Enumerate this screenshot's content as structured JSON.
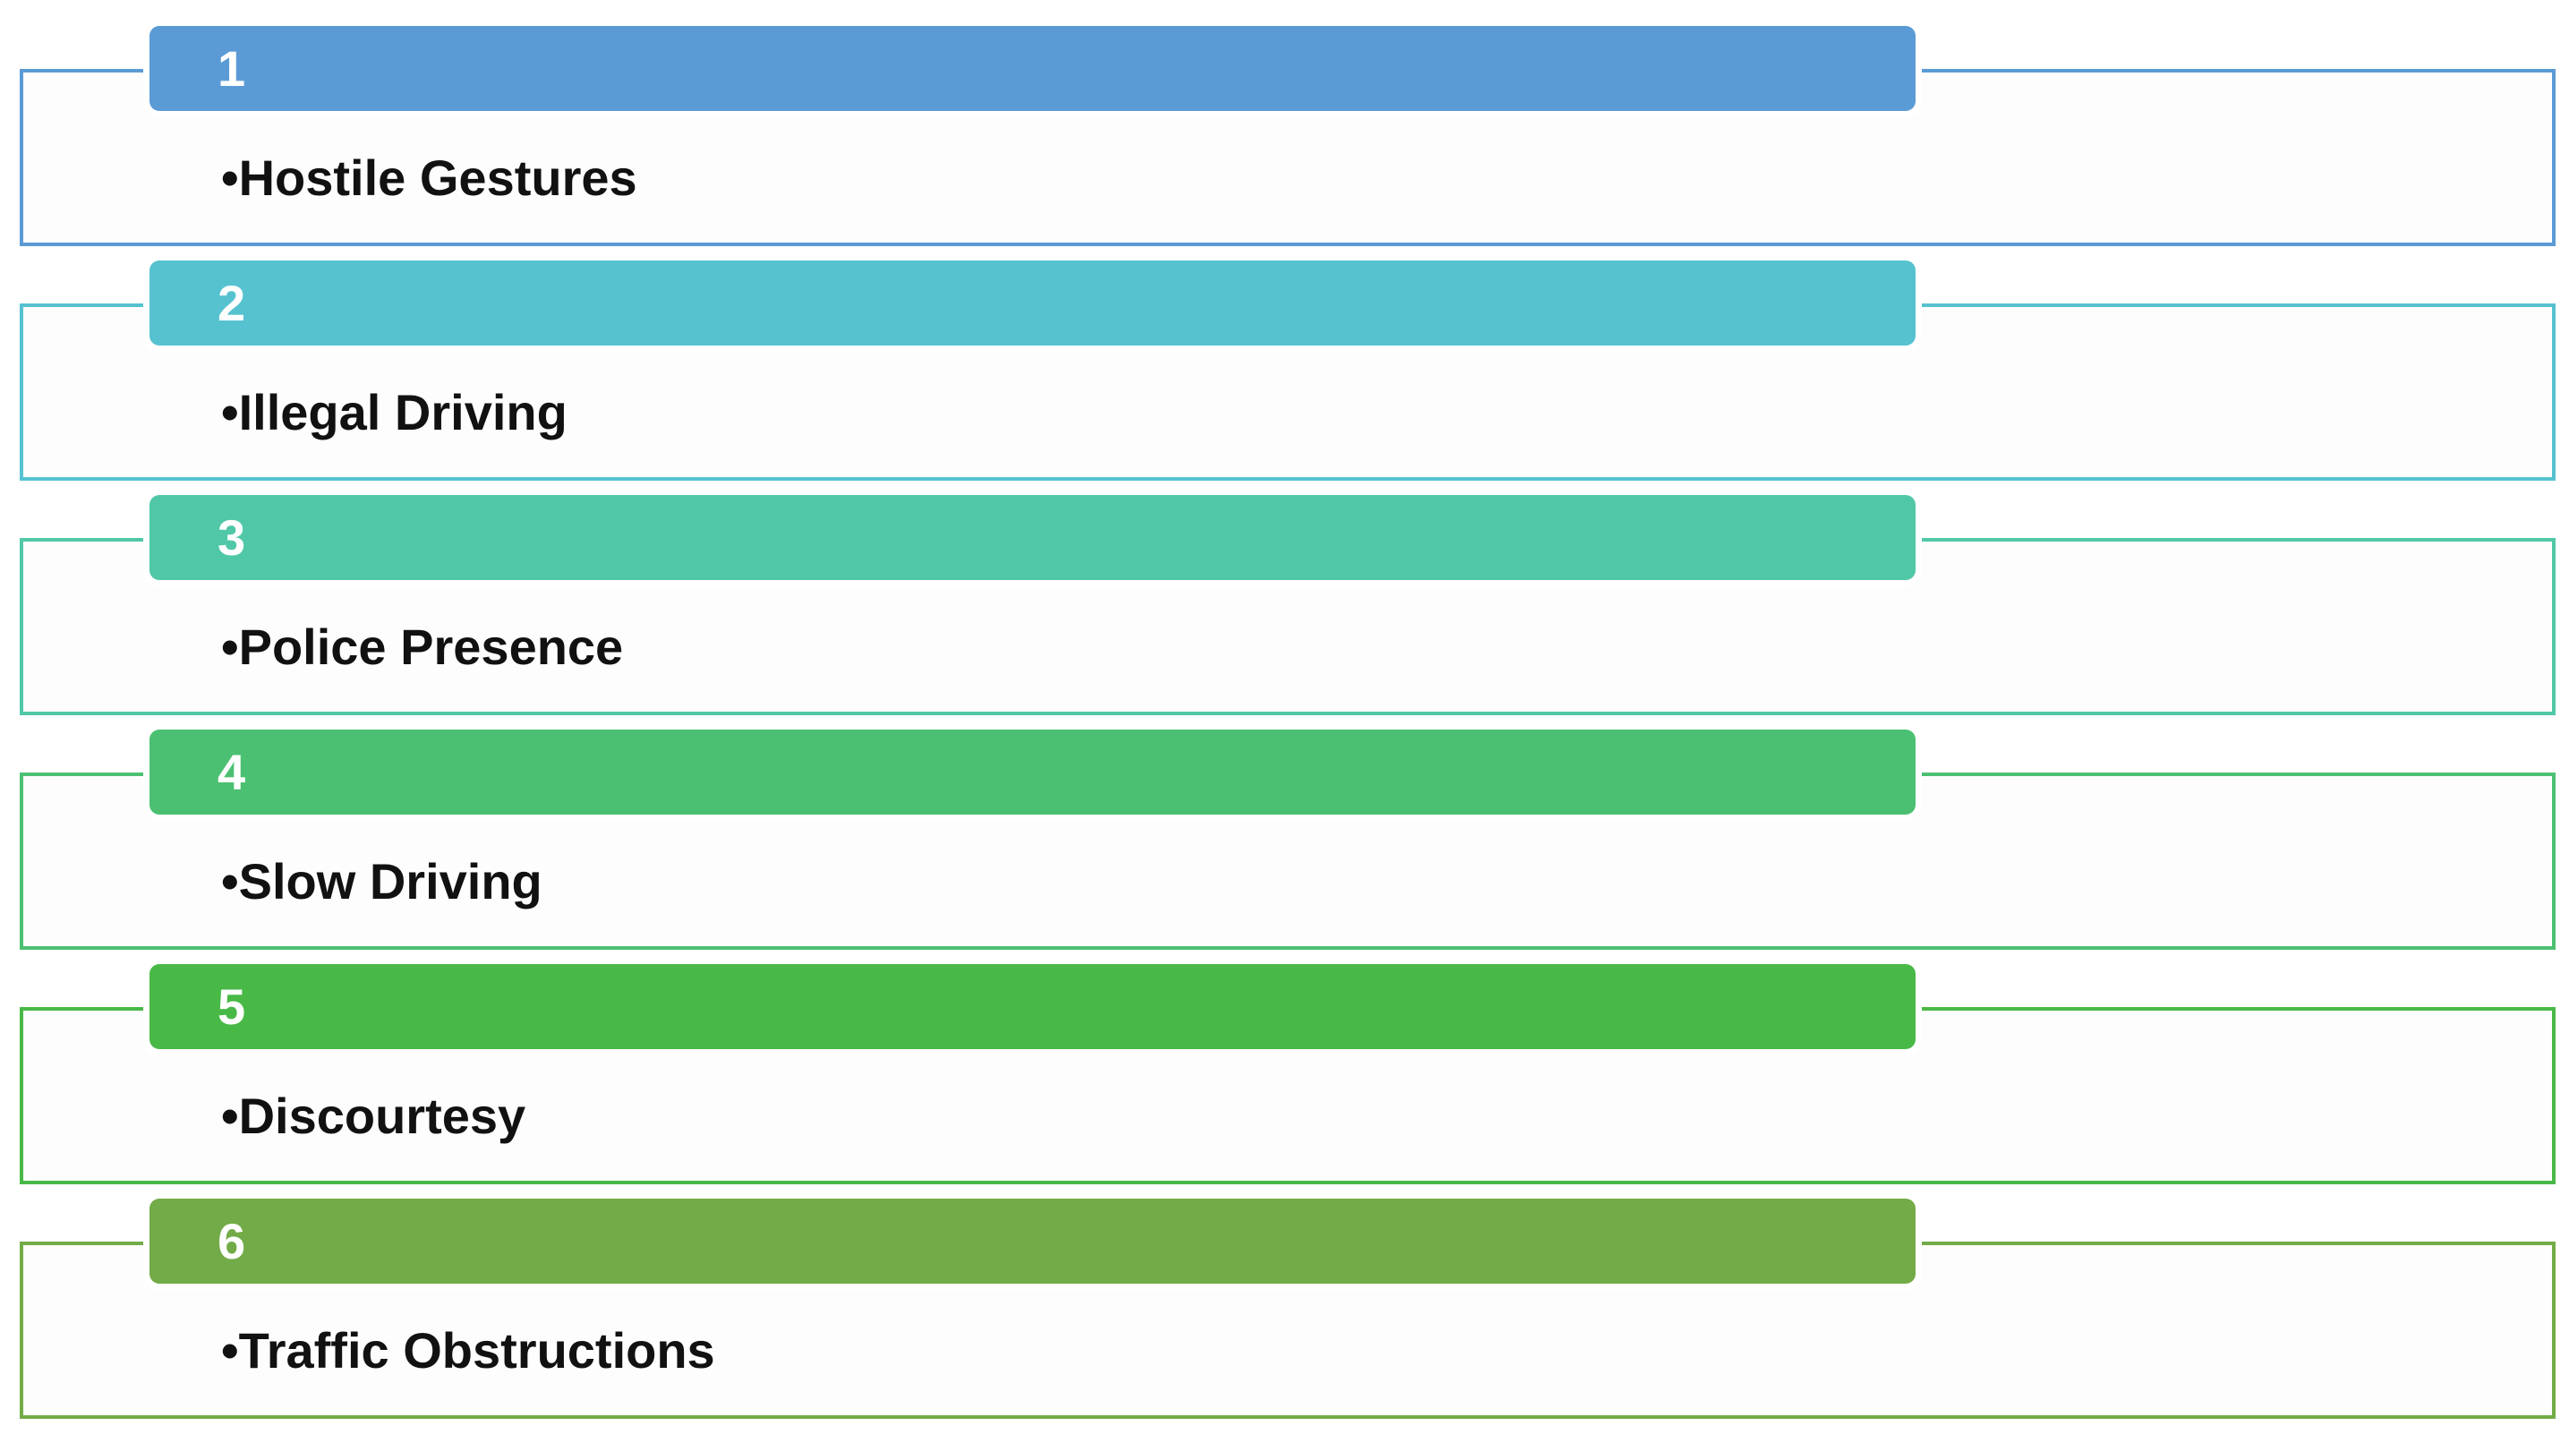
{
  "items": [
    {
      "number": "1",
      "label": "•Hostile Gestures"
    },
    {
      "number": "2",
      "label": "•Illegal Driving"
    },
    {
      "number": "3",
      "label": "•Police Presence"
    },
    {
      "number": "4",
      "label": "•Slow Driving"
    },
    {
      "number": "5",
      "label": "•Discourtesy"
    },
    {
      "number": "6",
      "label": "•Traffic Obstructions"
    }
  ]
}
